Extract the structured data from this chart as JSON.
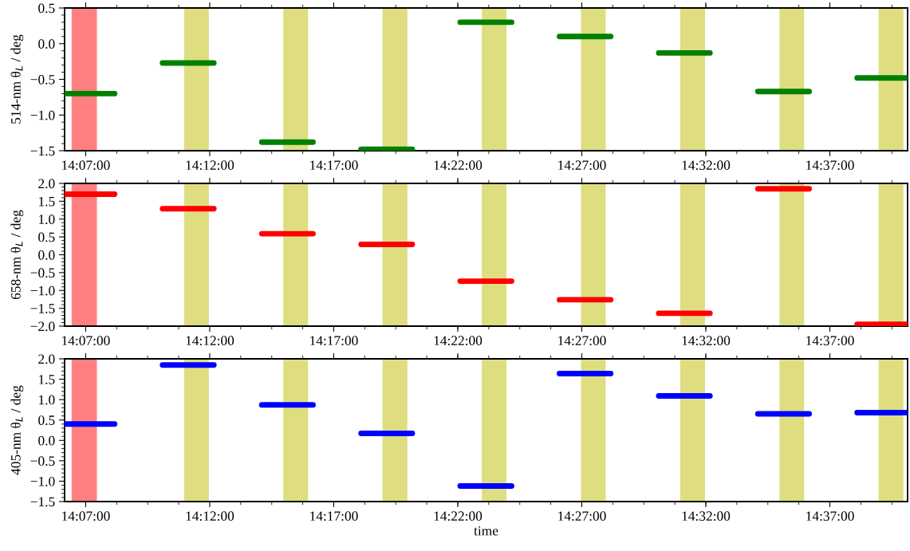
{
  "chart_data": [
    {
      "type": "line",
      "ylabel": "514-nm θ$_{L}$ / deg",
      "xlim": [
        14.1025,
        14.6689
      ],
      "ylim": [
        -1.5,
        0.5
      ],
      "yticks": [
        {
          "value": -1.5,
          "label": "−1.5"
        },
        {
          "value": -1.0,
          "label": "−1.0"
        },
        {
          "value": -0.5,
          "label": "−0.5"
        },
        {
          "value": 0.0,
          "label": "0.0"
        },
        {
          "value": 0.5,
          "label": "0.5"
        }
      ],
      "xticks": [
        {
          "value": 14.11667,
          "label": "14:07:00"
        },
        {
          "value": 14.2,
          "label": "14:12:00"
        },
        {
          "value": 14.28333,
          "label": "14:17:00"
        },
        {
          "value": 14.36667,
          "label": "14:22:00"
        },
        {
          "value": 14.45,
          "label": "14:27:00"
        },
        {
          "value": 14.53333,
          "label": "14:32:00"
        },
        {
          "value": 14.61667,
          "label": "14:37:00"
        }
      ],
      "series": [
        {
          "color": "#008000",
          "x": [
            14.1025,
            14.1361,
            null,
            14.1683,
            14.2028,
            null,
            14.235,
            14.2694,
            null,
            14.3017,
            14.3361,
            null,
            14.3683,
            14.4028,
            null,
            14.435,
            14.4694,
            null,
            14.5017,
            14.5361,
            null,
            14.5683,
            14.6028,
            null,
            14.635,
            14.6689
          ],
          "values": [
            -0.7,
            -0.7,
            null,
            -0.27,
            -0.27,
            null,
            -1.38,
            -1.38,
            null,
            -1.48,
            -1.48,
            null,
            0.3,
            0.3,
            null,
            0.1,
            0.1,
            null,
            -0.13,
            -0.13,
            null,
            -0.67,
            -0.67,
            null,
            -0.48,
            -0.48
          ]
        }
      ],
      "bands": [
        {
          "axis": "x",
          "from": 14.1072,
          "to": 14.1242,
          "color": "#ff8080"
        },
        {
          "axis": "x",
          "from": 14.1828,
          "to": 14.1994,
          "color": "#dede80"
        },
        {
          "axis": "x",
          "from": 14.2494,
          "to": 14.2661,
          "color": "#dede80"
        },
        {
          "axis": "x",
          "from": 14.3161,
          "to": 14.3328,
          "color": "#dede80"
        },
        {
          "axis": "x",
          "from": 14.3828,
          "to": 14.3994,
          "color": "#dede80"
        },
        {
          "axis": "x",
          "from": 14.4494,
          "to": 14.4661,
          "color": "#dede80"
        },
        {
          "axis": "x",
          "from": 14.5161,
          "to": 14.5328,
          "color": "#dede80"
        },
        {
          "axis": "x",
          "from": 14.5828,
          "to": 14.5994,
          "color": "#dede80"
        },
        {
          "axis": "x",
          "from": 14.6494,
          "to": 14.6661,
          "color": "#dede80"
        }
      ]
    },
    {
      "type": "line",
      "ylabel": "658-nm θ$_{L}$ / deg",
      "xlim": [
        14.1025,
        14.6689
      ],
      "ylim": [
        -2.0,
        2.0
      ],
      "yticks": [
        {
          "value": -2.0,
          "label": "−2.0"
        },
        {
          "value": -1.5,
          "label": "−1.5"
        },
        {
          "value": -1.0,
          "label": "−1.0"
        },
        {
          "value": -0.5,
          "label": "−0.5"
        },
        {
          "value": 0.0,
          "label": "0.0"
        },
        {
          "value": 0.5,
          "label": "0.5"
        },
        {
          "value": 1.0,
          "label": "1.0"
        },
        {
          "value": 1.5,
          "label": "1.5"
        },
        {
          "value": 2.0,
          "label": "2.0"
        }
      ],
      "xticks": [
        {
          "value": 14.11667,
          "label": "14:07:00"
        },
        {
          "value": 14.2,
          "label": "14:12:00"
        },
        {
          "value": 14.28333,
          "label": "14:17:00"
        },
        {
          "value": 14.36667,
          "label": "14:22:00"
        },
        {
          "value": 14.45,
          "label": "14:27:00"
        },
        {
          "value": 14.53333,
          "label": "14:32:00"
        },
        {
          "value": 14.61667,
          "label": "14:37:00"
        }
      ],
      "series": [
        {
          "color": "#ff0000",
          "x": [
            14.1025,
            14.1361,
            null,
            14.1683,
            14.2028,
            null,
            14.235,
            14.2694,
            null,
            14.3017,
            14.3361,
            null,
            14.3683,
            14.4028,
            null,
            14.435,
            14.4694,
            null,
            14.5017,
            14.5361,
            null,
            14.5683,
            14.6028,
            null,
            14.635,
            14.6689
          ],
          "values": [
            1.7,
            1.7,
            null,
            1.29,
            1.29,
            null,
            0.59,
            0.59,
            null,
            0.29,
            0.29,
            null,
            -0.74,
            -0.74,
            null,
            -1.26,
            -1.26,
            null,
            -1.64,
            -1.64,
            null,
            1.85,
            1.85,
            null,
            -1.95,
            -1.95
          ]
        }
      ],
      "bands": [
        {
          "axis": "x",
          "from": 14.1072,
          "to": 14.1242,
          "color": "#ff8080"
        },
        {
          "axis": "x",
          "from": 14.1828,
          "to": 14.1994,
          "color": "#dede80"
        },
        {
          "axis": "x",
          "from": 14.2494,
          "to": 14.2661,
          "color": "#dede80"
        },
        {
          "axis": "x",
          "from": 14.3161,
          "to": 14.3328,
          "color": "#dede80"
        },
        {
          "axis": "x",
          "from": 14.3828,
          "to": 14.3994,
          "color": "#dede80"
        },
        {
          "axis": "x",
          "from": 14.4494,
          "to": 14.4661,
          "color": "#dede80"
        },
        {
          "axis": "x",
          "from": 14.5161,
          "to": 14.5328,
          "color": "#dede80"
        },
        {
          "axis": "x",
          "from": 14.5828,
          "to": 14.5994,
          "color": "#dede80"
        },
        {
          "axis": "x",
          "from": 14.6494,
          "to": 14.6661,
          "color": "#dede80"
        }
      ]
    },
    {
      "type": "line",
      "xlabel": "time",
      "ylabel": "405-nm θ$_{L}$ / deg",
      "xlim": [
        14.1025,
        14.6689
      ],
      "ylim": [
        -1.5,
        2.0
      ],
      "yticks": [
        {
          "value": -1.5,
          "label": "−1.5"
        },
        {
          "value": -1.0,
          "label": "−1.0"
        },
        {
          "value": -0.5,
          "label": "−0.5"
        },
        {
          "value": 0.0,
          "label": "0.0"
        },
        {
          "value": 0.5,
          "label": "0.5"
        },
        {
          "value": 1.0,
          "label": "1.0"
        },
        {
          "value": 1.5,
          "label": "1.5"
        },
        {
          "value": 2.0,
          "label": "2.0"
        }
      ],
      "xticks": [
        {
          "value": 14.11667,
          "label": "14:07:00"
        },
        {
          "value": 14.2,
          "label": "14:12:00"
        },
        {
          "value": 14.28333,
          "label": "14:17:00"
        },
        {
          "value": 14.36667,
          "label": "14:22:00"
        },
        {
          "value": 14.45,
          "label": "14:27:00"
        },
        {
          "value": 14.53333,
          "label": "14:32:00"
        },
        {
          "value": 14.61667,
          "label": "14:37:00"
        }
      ],
      "series": [
        {
          "color": "#0000ff",
          "x": [
            14.1025,
            14.1361,
            null,
            14.1683,
            14.2028,
            null,
            14.235,
            14.2694,
            null,
            14.3017,
            14.3361,
            null,
            14.3683,
            14.4028,
            null,
            14.435,
            14.4694,
            null,
            14.5017,
            14.5361,
            null,
            14.5683,
            14.6028,
            null,
            14.635,
            14.6689
          ],
          "values": [
            0.4,
            0.4,
            null,
            1.85,
            1.85,
            null,
            0.87,
            0.87,
            null,
            0.17,
            0.17,
            null,
            -1.12,
            -1.12,
            null,
            1.64,
            1.64,
            null,
            1.09,
            1.09,
            null,
            0.65,
            0.65,
            null,
            0.68,
            0.68
          ]
        }
      ],
      "bands": [
        {
          "axis": "x",
          "from": 14.1072,
          "to": 14.1242,
          "color": "#ff8080"
        },
        {
          "axis": "x",
          "from": 14.1828,
          "to": 14.1994,
          "color": "#dede80"
        },
        {
          "axis": "x",
          "from": 14.2494,
          "to": 14.2661,
          "color": "#dede80"
        },
        {
          "axis": "x",
          "from": 14.3161,
          "to": 14.3328,
          "color": "#dede80"
        },
        {
          "axis": "x",
          "from": 14.3828,
          "to": 14.3994,
          "color": "#dede80"
        },
        {
          "axis": "x",
          "from": 14.4494,
          "to": 14.4661,
          "color": "#dede80"
        },
        {
          "axis": "x",
          "from": 14.5161,
          "to": 14.5328,
          "color": "#dede80"
        },
        {
          "axis": "x",
          "from": 14.5828,
          "to": 14.5994,
          "color": "#dede80"
        },
        {
          "axis": "x",
          "from": 14.6494,
          "to": 14.6661,
          "color": "#dede80"
        }
      ]
    }
  ]
}
